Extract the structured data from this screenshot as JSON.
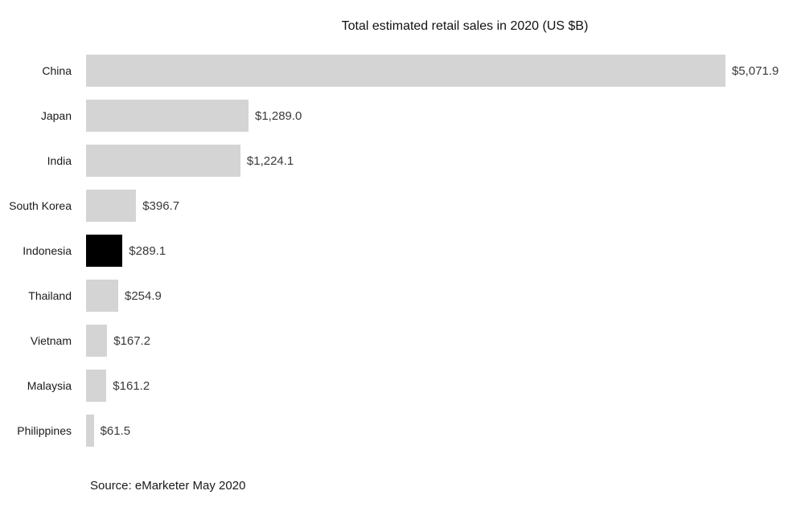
{
  "chart_data": {
    "type": "bar",
    "orientation": "horizontal",
    "title": "Total estimated retail sales in 2020 (US $B)",
    "categories": [
      "China",
      "Japan",
      "India",
      "South Korea",
      "Indonesia",
      "Thailand",
      "Vietnam",
      "Malaysia",
      "Philippines"
    ],
    "values": [
      5071.9,
      1289.0,
      1224.1,
      396.7,
      289.1,
      254.9,
      167.2,
      161.2,
      61.5
    ],
    "value_labels": [
      "$5,071.9",
      "$1,289.0",
      "$1,224.1",
      "$396.7",
      "$289.1",
      "$254.9",
      "$167.2",
      "$161.2",
      "$61.5"
    ],
    "highlighted_category": "Indonesia",
    "bar_color": "#d4d4d4",
    "highlight_color": "#000000",
    "xlim": [
      0,
      5071.9
    ],
    "grid": false,
    "legend": "none",
    "source": "Source: eMarketer May 2020"
  }
}
